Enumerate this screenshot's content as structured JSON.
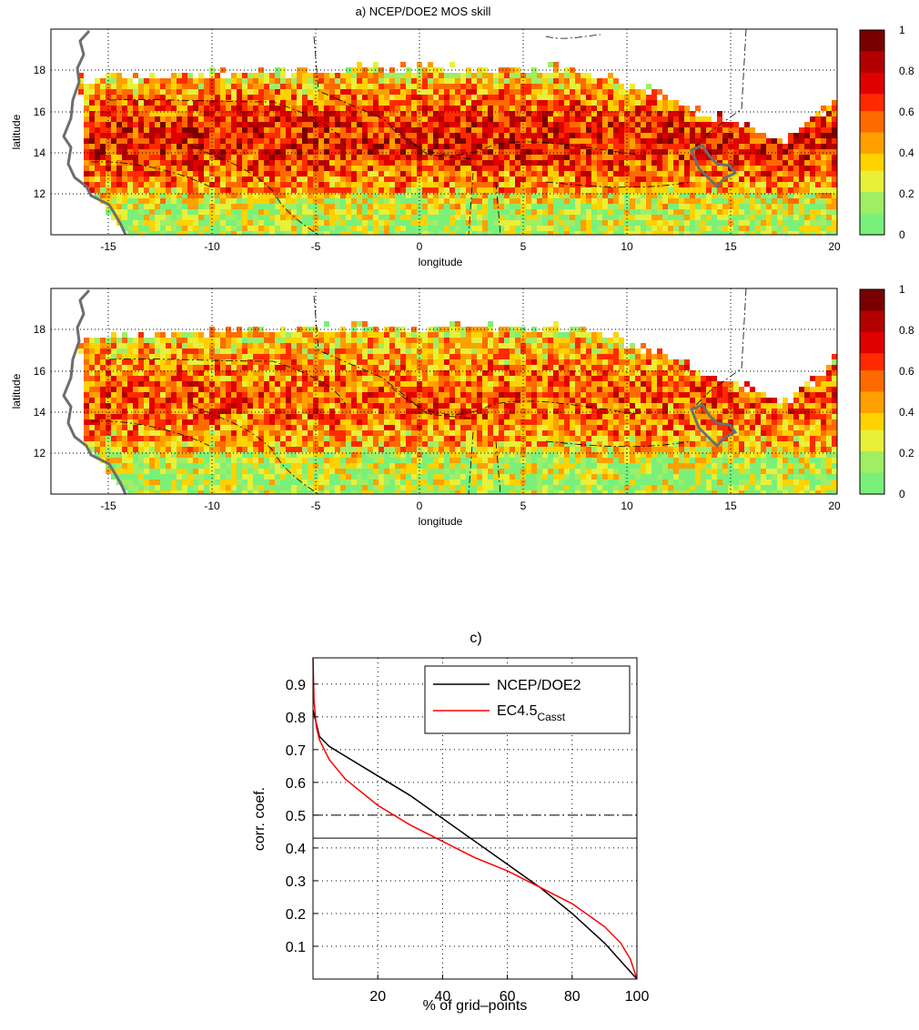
{
  "maps": [
    {
      "title": "a) NCEP/DOE2 MOS skill",
      "xlabel": "longitude",
      "ylabel": "latitude",
      "xticks": [
        "-15",
        "-10",
        "-5",
        "0",
        "5",
        "10",
        "15",
        "20"
      ],
      "yticks": [
        "18",
        "16",
        "14",
        "12"
      ],
      "colorbar_ticks": [
        "1",
        "0.8",
        "0.6",
        "0.4",
        "0.2",
        "0"
      ],
      "colormap": [
        "#7a0000",
        "#b30000",
        "#e00000",
        "#ff2a00",
        "#ff6a00",
        "#ffa000",
        "#ffd200",
        "#e8f03a",
        "#9fee66",
        "#7af07a"
      ]
    },
    {
      "title": "",
      "xlabel": "longitude",
      "ylabel": "latitude",
      "xticks": [
        "-15",
        "-10",
        "-5",
        "0",
        "5",
        "10",
        "15",
        "20"
      ],
      "yticks": [
        "18",
        "16",
        "14",
        "12"
      ],
      "colorbar_ticks": [
        "1",
        "0.8",
        "0.6",
        "0.4",
        "0.2",
        "0"
      ],
      "colormap": [
        "#7a0000",
        "#b30000",
        "#e00000",
        "#ff2a00",
        "#ff6a00",
        "#ffa000",
        "#ffd200",
        "#e8f03a",
        "#9fee66",
        "#7af07a"
      ]
    }
  ],
  "chart_data": {
    "type": "line",
    "title": "c)",
    "xlabel": "% of grid–points",
    "ylabel": "corr. coef.",
    "xlim": [
      0,
      100
    ],
    "ylim": [
      0,
      0.98
    ],
    "xticks": [
      "20",
      "40",
      "60",
      "80",
      "100"
    ],
    "yticks": [
      "0.9",
      "0.8",
      "0.7",
      "0.6",
      "0.5",
      "0.4",
      "0.3",
      "0.2",
      "0.1"
    ],
    "grid": true,
    "legend": "top-right",
    "legend_entries": [
      {
        "name": "NCEP/DOE2",
        "sub": ""
      },
      {
        "name": "EC4.5",
        "sub": "Casst"
      }
    ],
    "series": [
      {
        "name": "NCEP/DOE2",
        "color": "#000000",
        "x": [
          0,
          1,
          2,
          5,
          10,
          20,
          30,
          40,
          50,
          60,
          70,
          80,
          90,
          100
        ],
        "y": [
          0.82,
          0.78,
          0.74,
          0.71,
          0.68,
          0.62,
          0.56,
          0.49,
          0.42,
          0.35,
          0.28,
          0.2,
          0.11,
          0.0
        ]
      },
      {
        "name": "EC4.5",
        "color": "#ff0000",
        "x": [
          0,
          0.3,
          1,
          2,
          5,
          10,
          20,
          30,
          40,
          50,
          60,
          70,
          80,
          90,
          95,
          98,
          100
        ],
        "y": [
          0.98,
          0.85,
          0.77,
          0.73,
          0.67,
          0.61,
          0.53,
          0.47,
          0.42,
          0.37,
          0.33,
          0.28,
          0.23,
          0.16,
          0.11,
          0.06,
          0.0
        ]
      }
    ],
    "reference_lines": [
      {
        "y": 0.5,
        "style": "dash-dot"
      },
      {
        "y": 0.43,
        "style": "solid"
      }
    ]
  }
}
